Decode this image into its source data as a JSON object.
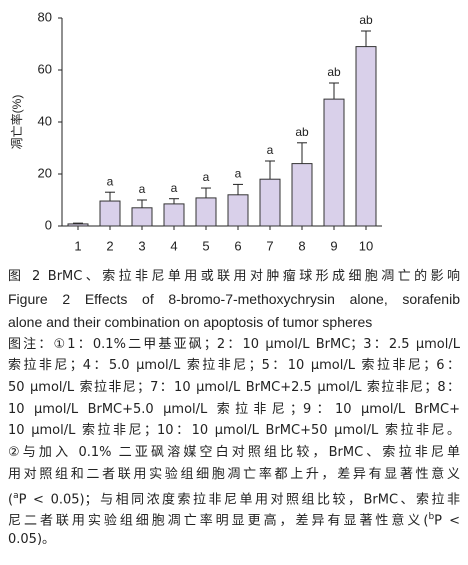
{
  "chart_data": {
    "type": "bar",
    "y_label": "凋亡率(%)",
    "categories": [
      "1",
      "2",
      "3",
      "4",
      "5",
      "6",
      "7",
      "8",
      "9",
      "10"
    ],
    "values": [
      0.8,
      9.6,
      7,
      8.5,
      10.8,
      12,
      18,
      24,
      48.8,
      69
    ],
    "errors": [
      0.3,
      3.4,
      3,
      2,
      3.8,
      4,
      7,
      8,
      6.2,
      6
    ],
    "significance": [
      null,
      "a",
      "a",
      "a",
      "a",
      "a",
      "a",
      "ab",
      "ab",
      "ab"
    ],
    "color": "#d9d0ea",
    "ylim": [
      0,
      80
    ],
    "yticks": [
      0,
      20,
      40,
      60,
      80
    ],
    "grid": false
  },
  "caption": {
    "title_cn": "图 2   BrMC、索拉非尼单用或联用对肿瘤球形成细胞凋亡的影响",
    "title_en": [
      "Figure 2   Effects of 8-bromo-7-methoxychrysin alone, sorafenib",
      "alone and their combination on apoptosis of tumor spheres"
    ],
    "notes": [
      [
        {
          "text": "图注：①1：0.1%二甲基亚砜；2：10 μmol/L BrMC；3：2.5 μmol/L"
        }
      ],
      [
        {
          "text": "索拉非尼；4：5.0 μmol/L 索拉非尼；5：10 μmol/L 索拉非尼；6："
        }
      ],
      [
        {
          "text": "50 μmol/L 索拉非尼；7：10 μmol/L BrMC+2.5 μmol/L 索拉非尼；8："
        }
      ],
      [
        {
          "text": "10 μmol/L BrMC+5.0 μmol/L 索拉非尼；9：10 μmol/L BrMC+"
        }
      ],
      [
        {
          "text": "10 μmol/L 索拉非尼；10：10 μmol/L BrMC+50 μmol/L 索拉非尼。"
        }
      ],
      [
        {
          "text": "②与加入 0.1% 二亚砜溶媒空白对照组比较，BrMC、索拉非尼单"
        }
      ],
      [
        {
          "text": "用对照组和二者联用实验组细胞凋亡率都上升，差异有显著性意义"
        }
      ],
      [
        {
          "text": "("
        },
        {
          "text": "a",
          "sup": true
        },
        {
          "text": "P < 0.05)；与相同浓度索拉非尼单用对照组比较，BrMC、索拉非"
        }
      ],
      [
        {
          "text": "尼二者联用实验组细胞凋亡率明显更高，差异有显著性意义("
        },
        {
          "text": "b",
          "sup": true
        },
        {
          "text": "P <"
        }
      ],
      [
        {
          "text": "0.05)。"
        }
      ]
    ]
  }
}
